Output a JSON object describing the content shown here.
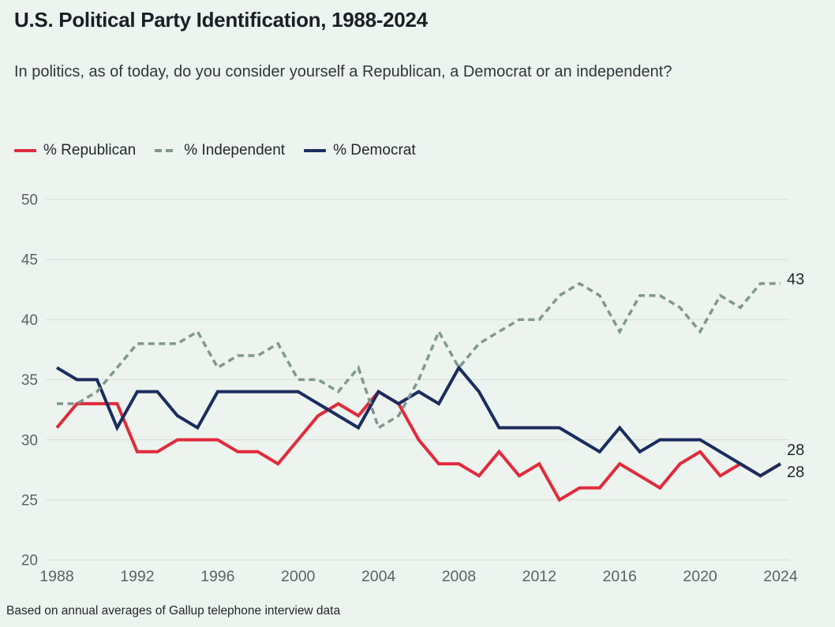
{
  "header": {
    "title": "U.S. Political Party Identification, 1988-2024",
    "subtitle": "In politics, as of today, do you consider yourself a Republican, a Democrat or an independent?"
  },
  "footer": {
    "source_note": "Based on annual averages of Gallup telephone interview data"
  },
  "colors": {
    "background": "#edf3ee",
    "grid": "#d8ded8",
    "axis_text": "#5d6267",
    "title_text": "#191f24",
    "subtitle_text": "#2f363c",
    "legend_text": "#22272c",
    "end_label_text": "#23282e",
    "republican": "#e02b3c",
    "independent": "#7f988e",
    "democrat": "#1b2c5e"
  },
  "chart_data": {
    "type": "line",
    "x": [
      1988,
      1989,
      1990,
      1991,
      1992,
      1993,
      1994,
      1995,
      1996,
      1997,
      1998,
      1999,
      2000,
      2001,
      2002,
      2003,
      2004,
      2005,
      2006,
      2007,
      2008,
      2009,
      2010,
      2011,
      2012,
      2013,
      2014,
      2015,
      2016,
      2017,
      2018,
      2019,
      2020,
      2021,
      2022,
      2023,
      2024
    ],
    "series": [
      {
        "name": "Republican",
        "label": "% Republican",
        "color_key": "republican",
        "style": "solid",
        "end_label": "28",
        "values": [
          31,
          33,
          33,
          33,
          29,
          29,
          30,
          30,
          30,
          29,
          29,
          28,
          30,
          32,
          33,
          32,
          34,
          33,
          30,
          28,
          28,
          27,
          29,
          27,
          28,
          25,
          26,
          26,
          28,
          27,
          26,
          28,
          29,
          27,
          28,
          27,
          28
        ]
      },
      {
        "name": "Independent",
        "label": "% Independent",
        "color_key": "independent",
        "style": "dashed",
        "end_label": "43",
        "values": [
          33,
          33,
          34,
          36,
          38,
          38,
          38,
          39,
          36,
          37,
          37,
          38,
          35,
          35,
          34,
          36,
          31,
          32,
          35,
          39,
          36,
          38,
          39,
          40,
          40,
          42,
          43,
          42,
          39,
          42,
          42,
          41,
          39,
          42,
          41,
          43,
          43
        ]
      },
      {
        "name": "Democrat",
        "label": "% Democrat",
        "color_key": "democrat",
        "style": "solid",
        "end_label": "28",
        "values": [
          36,
          35,
          35,
          31,
          34,
          34,
          32,
          31,
          34,
          34,
          34,
          34,
          34,
          33,
          32,
          31,
          34,
          33,
          34,
          33,
          36,
          34,
          31,
          31,
          31,
          31,
          30,
          29,
          31,
          29,
          30,
          30,
          30,
          29,
          28,
          27,
          28
        ]
      }
    ],
    "ylim": [
      20,
      50
    ],
    "yticks": [
      20,
      25,
      30,
      35,
      40,
      45,
      50
    ],
    "xticks": [
      1988,
      1992,
      1996,
      2000,
      2004,
      2008,
      2012,
      2016,
      2020,
      2024
    ],
    "grid": "horizontal",
    "legend_position": "top-left"
  }
}
